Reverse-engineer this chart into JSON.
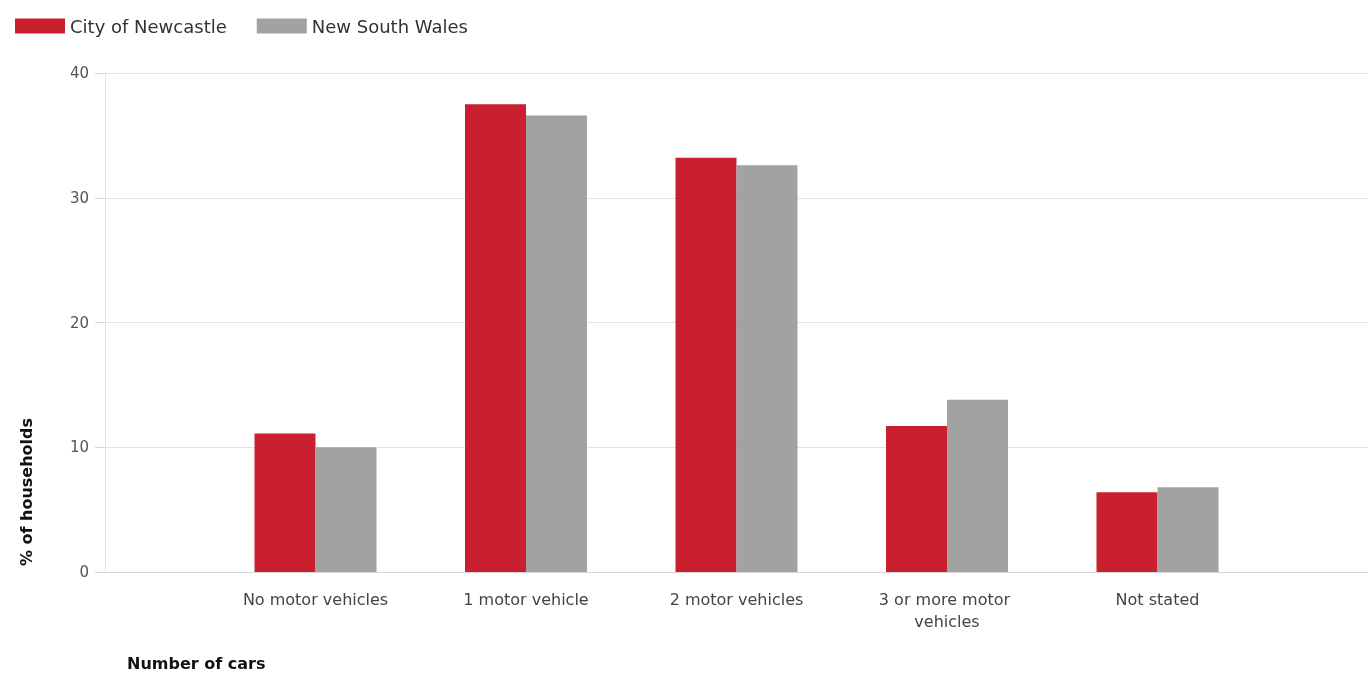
{
  "chart_data": {
    "type": "bar",
    "categories": [
      null,
      "No motor vehicles",
      "1 motor vehicle",
      "2 motor vehicles",
      "3 or more motor vehicles",
      "Not stated",
      null
    ],
    "series": [
      {
        "name": "City of Newcastle",
        "color": "#c8202f",
        "values": [
          null,
          11.1,
          37.5,
          33.2,
          11.7,
          6.4,
          null
        ]
      },
      {
        "name": "New South Wales",
        "color": "#a2a2a2",
        "values": [
          null,
          10.0,
          36.6,
          32.6,
          13.8,
          6.8,
          null
        ]
      }
    ],
    "xlabel": "Number of cars",
    "ylabel": "% of households",
    "ylim": [
      0,
      40
    ],
    "yticks": [
      0,
      10,
      20,
      30,
      40
    ],
    "grid": "y",
    "legend": "top left"
  }
}
